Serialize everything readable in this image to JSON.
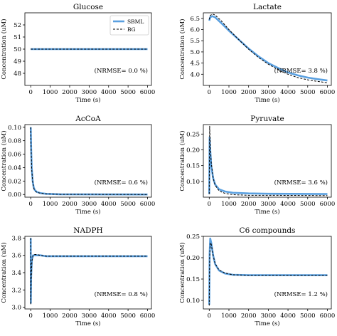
{
  "legend": {
    "sbml_label": "SBML",
    "bg_label": "BG"
  },
  "colors": {
    "sbml": "#5aa0e0",
    "bg": "#000000",
    "axis": "#000000"
  },
  "chart_data": [
    {
      "type": "line",
      "title": "Glucose",
      "xlabel": "Time (s)",
      "ylabel": "Concentration (uM)",
      "xlim": [
        -300,
        6200
      ],
      "ylim": [
        47,
        53
      ],
      "xticks": [
        0,
        1000,
        2000,
        3000,
        4000,
        5000,
        6000
      ],
      "yticks": [
        48,
        49,
        50,
        51,
        52
      ],
      "annotation": "(NRMSE= 0.0 %)",
      "has_legend": true,
      "series": [
        {
          "name": "SBML",
          "x": [
            0,
            6000
          ],
          "y": [
            50,
            50
          ]
        },
        {
          "name": "BG",
          "x": [
            0,
            6000
          ],
          "y": [
            50,
            50
          ]
        }
      ]
    },
    {
      "type": "line",
      "title": "Lactate",
      "xlabel": "Time (s)",
      "ylabel": "Concentration (uM)",
      "xlim": [
        -300,
        6200
      ],
      "ylim": [
        3.5,
        6.75
      ],
      "xticks": [
        0,
        1000,
        2000,
        3000,
        4000,
        5000,
        6000
      ],
      "yticks": [
        4.0,
        4.5,
        5.0,
        5.5,
        6.0,
        6.5
      ],
      "annotation": "(NRMSE= 3.8 %)",
      "has_legend": false,
      "series": [
        {
          "name": "SBML",
          "x": [
            0,
            50,
            150,
            300,
            600,
            1000,
            1500,
            2000,
            2500,
            3000,
            3500,
            4000,
            4500,
            5000,
            5500,
            6000
          ],
          "y": [
            6.4,
            6.55,
            6.6,
            6.55,
            6.3,
            5.95,
            5.55,
            5.15,
            4.8,
            4.5,
            4.28,
            4.08,
            3.95,
            3.85,
            3.78,
            3.72
          ]
        },
        {
          "name": "BG",
          "x": [
            0,
            50,
            150,
            300,
            600,
            1000,
            1500,
            2000,
            2500,
            3000,
            3500,
            4000,
            4500,
            5000,
            5500,
            6000
          ],
          "y": [
            6.45,
            6.62,
            6.7,
            6.65,
            6.4,
            6.0,
            5.55,
            5.12,
            4.75,
            4.45,
            4.2,
            4.0,
            3.85,
            3.75,
            3.68,
            3.62
          ]
        }
      ]
    },
    {
      "type": "line",
      "title": "AcCoA",
      "xlabel": "Time (s)",
      "ylabel": "Concentration (uM)",
      "xlim": [
        -300,
        6200
      ],
      "ylim": [
        -0.004,
        0.104
      ],
      "xticks": [
        0,
        1000,
        2000,
        3000,
        4000,
        5000,
        6000
      ],
      "yticks": [
        0.0,
        0.02,
        0.04,
        0.06,
        0.08,
        0.1
      ],
      "annotation": "(NRMSE= 0.6 %)",
      "has_legend": false,
      "series": [
        {
          "name": "SBML",
          "x": [
            0,
            20,
            50,
            100,
            150,
            200,
            300,
            500,
            800,
            1500,
            6000
          ],
          "y": [
            0.1,
            0.07,
            0.04,
            0.02,
            0.011,
            0.007,
            0.004,
            0.002,
            0.001,
            0.0003,
            0.0
          ]
        },
        {
          "name": "BG",
          "x": [
            0,
            20,
            50,
            100,
            150,
            200,
            300,
            500,
            800,
            1500,
            6000
          ],
          "y": [
            0.1,
            0.068,
            0.038,
            0.019,
            0.01,
            0.0065,
            0.0035,
            0.0018,
            0.0009,
            0.0003,
            0.0
          ]
        }
      ]
    },
    {
      "type": "line",
      "title": "Pyruvate",
      "xlabel": "Time (s)",
      "ylabel": "Concentration (uM)",
      "xlim": [
        -300,
        6200
      ],
      "ylim": [
        0.05,
        0.28
      ],
      "xticks": [
        0,
        1000,
        2000,
        3000,
        4000,
        5000,
        6000
      ],
      "yticks": [
        0.1,
        0.15,
        0.2,
        0.25
      ],
      "annotation": "(NRMSE= 3.6 %)",
      "has_legend": false,
      "series": [
        {
          "name": "SBML",
          "x": [
            0,
            20,
            50,
            100,
            200,
            300,
            500,
            800,
            1200,
            2000,
            3000,
            6000
          ],
          "y": [
            0.06,
            0.24,
            0.2,
            0.15,
            0.11,
            0.09,
            0.075,
            0.068,
            0.064,
            0.062,
            0.061,
            0.06
          ]
        },
        {
          "name": "BG",
          "x": [
            0,
            20,
            50,
            100,
            200,
            300,
            500,
            800,
            1200,
            2000,
            3000,
            6000
          ],
          "y": [
            0.06,
            0.275,
            0.22,
            0.16,
            0.11,
            0.088,
            0.07,
            0.062,
            0.058,
            0.056,
            0.056,
            0.055
          ]
        }
      ]
    },
    {
      "type": "line",
      "title": "NADPH",
      "xlabel": "Time (s)",
      "ylabel": "Concentration (uM)",
      "xlim": [
        -300,
        6200
      ],
      "ylim": [
        2.98,
        3.82
      ],
      "xticks": [
        0,
        1000,
        2000,
        3000,
        4000,
        5000,
        6000
      ],
      "yticks": [
        3.0,
        3.2,
        3.4,
        3.6,
        3.8
      ],
      "annotation": "(NRMSE= 0.8 %)",
      "has_legend": false,
      "series": [
        {
          "name": "SBML",
          "x": [
            0,
            5,
            20,
            60,
            120,
            200,
            300,
            500,
            800,
            1500,
            6000
          ],
          "y": [
            3.8,
            3.05,
            3.35,
            3.55,
            3.6,
            3.6,
            3.6,
            3.6,
            3.59,
            3.59,
            3.59
          ]
        },
        {
          "name": "BG",
          "x": [
            0,
            5,
            20,
            60,
            120,
            200,
            300,
            500,
            800,
            1500,
            6000
          ],
          "y": [
            3.8,
            3.03,
            3.3,
            3.53,
            3.6,
            3.61,
            3.61,
            3.6,
            3.59,
            3.59,
            3.59
          ]
        }
      ]
    },
    {
      "type": "line",
      "title": "C6 compounds",
      "xlabel": "Time (s)",
      "ylabel": "Concentration (uM)",
      "xlim": [
        -300,
        6200
      ],
      "ylim": [
        0.08,
        0.25
      ],
      "xticks": [
        0,
        1000,
        2000,
        3000,
        4000,
        5000,
        6000
      ],
      "yticks": [
        0.1,
        0.15,
        0.2,
        0.25
      ],
      "annotation": "(NRMSE= 1.2 %)",
      "has_legend": false,
      "series": [
        {
          "name": "SBML",
          "x": [
            0,
            20,
            50,
            100,
            200,
            300,
            500,
            800,
            1200,
            2000,
            3000,
            6000
          ],
          "y": [
            0.09,
            0.21,
            0.245,
            0.235,
            0.205,
            0.185,
            0.17,
            0.163,
            0.16,
            0.159,
            0.159,
            0.159
          ]
        },
        {
          "name": "BG",
          "x": [
            0,
            20,
            50,
            100,
            200,
            300,
            500,
            800,
            1200,
            2000,
            3000,
            6000
          ],
          "y": [
            0.088,
            0.2,
            0.235,
            0.232,
            0.205,
            0.186,
            0.171,
            0.164,
            0.16,
            0.159,
            0.159,
            0.159
          ]
        }
      ]
    }
  ]
}
